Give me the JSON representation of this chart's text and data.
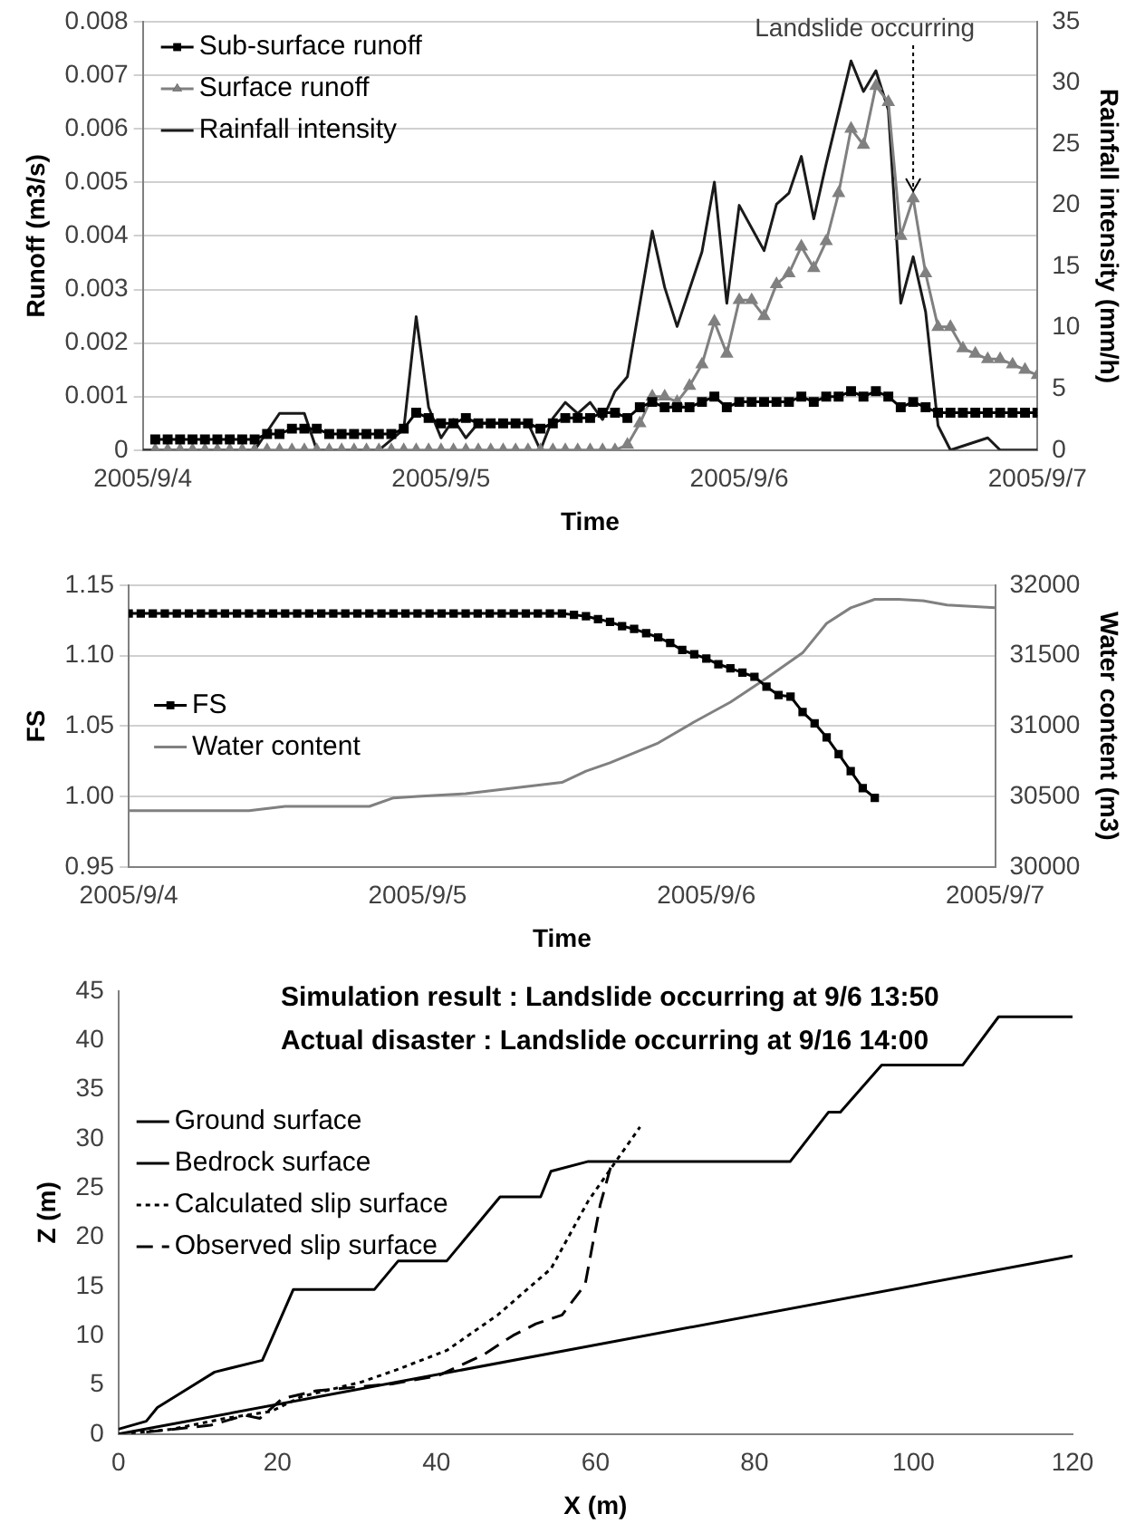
{
  "chart_data": [
    {
      "type": "line",
      "xlabel": "Time",
      "ylabel": "Runoff (m3/s)",
      "y2label": "Rainfall intensity (mm/h)",
      "grid": "y",
      "legend": "top left",
      "xlim": [
        "2005-09-04T00:00",
        "2005-09-07T00:00"
      ],
      "xticks": [
        {
          "value": "2005-09-04T00:00",
          "label": "2005/9/4"
        },
        {
          "value": "2005-09-05T00:00",
          "label": "2005/9/5"
        },
        {
          "value": "2005-09-06T00:00",
          "label": "2005/9/6"
        },
        {
          "value": "2005-09-07T00:00",
          "label": "2005/9/7"
        }
      ],
      "ylim": [
        0,
        0.008
      ],
      "yticks": [
        0,
        0.001,
        0.002,
        0.003,
        0.004,
        0.005,
        0.006,
        0.007,
        0.008
      ],
      "y2lim": [
        0,
        35
      ],
      "y2ticks": [
        0,
        5,
        10,
        15,
        20,
        25,
        30,
        35
      ],
      "x": [
        "2005-09-04T01:00",
        "2005-09-04T02:00",
        "2005-09-04T03:00",
        "2005-09-04T04:00",
        "2005-09-04T05:00",
        "2005-09-04T06:00",
        "2005-09-04T07:00",
        "2005-09-04T08:00",
        "2005-09-04T09:00",
        "2005-09-04T10:00",
        "2005-09-04T11:00",
        "2005-09-04T12:00",
        "2005-09-04T13:00",
        "2005-09-04T14:00",
        "2005-09-04T15:00",
        "2005-09-04T16:00",
        "2005-09-04T17:00",
        "2005-09-04T18:00",
        "2005-09-04T19:00",
        "2005-09-04T20:00",
        "2005-09-04T21:00",
        "2005-09-04T22:00",
        "2005-09-04T23:00",
        "2005-09-05T00:00",
        "2005-09-05T01:00",
        "2005-09-05T02:00",
        "2005-09-05T03:00",
        "2005-09-05T04:00",
        "2005-09-05T05:00",
        "2005-09-05T06:00",
        "2005-09-05T07:00",
        "2005-09-05T08:00",
        "2005-09-05T09:00",
        "2005-09-05T10:00",
        "2005-09-05T11:00",
        "2005-09-05T12:00",
        "2005-09-05T13:00",
        "2005-09-05T14:00",
        "2005-09-05T15:00",
        "2005-09-05T16:00",
        "2005-09-05T17:00",
        "2005-09-05T18:00",
        "2005-09-05T19:00",
        "2005-09-05T20:00",
        "2005-09-05T21:00",
        "2005-09-05T22:00",
        "2005-09-05T23:00",
        "2005-09-06T00:00",
        "2005-09-06T01:00",
        "2005-09-06T02:00",
        "2005-09-06T03:00",
        "2005-09-06T04:00",
        "2005-09-06T05:00",
        "2005-09-06T06:00",
        "2005-09-06T07:00",
        "2005-09-06T08:00",
        "2005-09-06T09:00",
        "2005-09-06T10:00",
        "2005-09-06T11:00",
        "2005-09-06T12:00",
        "2005-09-06T13:00",
        "2005-09-06T14:00",
        "2005-09-06T15:00",
        "2005-09-06T16:00",
        "2005-09-06T17:00",
        "2005-09-06T18:00",
        "2005-09-06T19:00",
        "2005-09-06T20:00",
        "2005-09-06T21:00",
        "2005-09-06T22:00",
        "2005-09-06T23:00",
        "2005-09-07T00:00"
      ],
      "series": [
        {
          "name": "Sub-surface runoff",
          "color": "#000000",
          "marker": "square",
          "values": [
            0.0002,
            0.0002,
            0.0002,
            0.0002,
            0.0002,
            0.0002,
            0.0002,
            0.0002,
            0.0002,
            0.0003,
            0.0003,
            0.0004,
            0.0004,
            0.0004,
            0.0003,
            0.0003,
            0.0003,
            0.0003,
            0.0003,
            0.0003,
            0.0004,
            0.0007,
            0.0006,
            0.0005,
            0.0005,
            0.0006,
            0.0005,
            0.0005,
            0.0005,
            0.0005,
            0.0005,
            0.0004,
            0.0005,
            0.0006,
            0.0006,
            0.0006,
            0.0007,
            0.0007,
            0.0006,
            0.0008,
            0.0009,
            0.0008,
            0.0008,
            0.0008,
            0.0009,
            0.001,
            0.0008,
            0.0009,
            0.0009,
            0.0009,
            0.0009,
            0.0009,
            0.001,
            0.0009,
            0.001,
            0.001,
            0.0011,
            0.001,
            0.0011,
            0.001,
            0.0008,
            0.0009,
            0.0008,
            0.0007,
            0.0007,
            0.0007,
            0.0007,
            0.0007,
            0.0007,
            0.0007,
            0.0007,
            0.0007
          ]
        },
        {
          "name": "Surface runoff",
          "color": "#808080",
          "marker": "triangle",
          "values": [
            0,
            0,
            0,
            0,
            0,
            0,
            0,
            0,
            0,
            0,
            0,
            0,
            0,
            0,
            0,
            0,
            0,
            0,
            0,
            0,
            0,
            0,
            0,
            0,
            0,
            0,
            0,
            0,
            0,
            0,
            0,
            0,
            0,
            0,
            0,
            0,
            0,
            0,
            0.0001,
            0.0005,
            0.001,
            0.001,
            0.0009,
            0.0012,
            0.0016,
            0.0024,
            0.0018,
            0.0028,
            0.0028,
            0.0025,
            0.0031,
            0.0033,
            0.0038,
            0.0034,
            0.0039,
            0.0048,
            0.006,
            0.0057,
            0.0068,
            0.0065,
            0.004,
            0.0047,
            0.0033,
            0.0023,
            0.0023,
            0.0019,
            0.0018,
            0.0017,
            0.0017,
            0.0016,
            0.0015,
            0.0014
          ]
        },
        {
          "name": "Rainfall intensity",
          "color": "#1a1a1a",
          "axis": "y2",
          "x": [
            "2005-09-04T00:00",
            "2005-09-04T09:00",
            "2005-09-04T11:00",
            "2005-09-04T13:00",
            "2005-09-04T14:00",
            "2005-09-04T19:00",
            "2005-09-04T21:00",
            "2005-09-04T22:00",
            "2005-09-04T23:00",
            "2005-09-05T00:00",
            "2005-09-05T01:00",
            "2005-09-05T02:00",
            "2005-09-05T03:00",
            "2005-09-05T07:00",
            "2005-09-05T08:00",
            "2005-09-05T09:00",
            "2005-09-05T10:00",
            "2005-09-05T11:00",
            "2005-09-05T12:00",
            "2005-09-05T13:00",
            "2005-09-05T14:00",
            "2005-09-05T15:00",
            "2005-09-05T17:00",
            "2005-09-05T18:00",
            "2005-09-05T19:00",
            "2005-09-05T21:00",
            "2005-09-05T22:00",
            "2005-09-05T23:00",
            "2005-09-06T00:00",
            "2005-09-06T02:00",
            "2005-09-06T03:00",
            "2005-09-06T04:00",
            "2005-09-06T05:00",
            "2005-09-06T06:00",
            "2005-09-06T07:00",
            "2005-09-06T09:00",
            "2005-09-06T10:00",
            "2005-09-06T11:00",
            "2005-09-06T12:00",
            "2005-09-06T13:00",
            "2005-09-06T14:00",
            "2005-09-06T15:00",
            "2005-09-06T16:00",
            "2005-09-06T17:00",
            "2005-09-06T20:00",
            "2005-09-06T21:00",
            "2005-09-07T00:00"
          ],
          "values": [
            0,
            0,
            3,
            3,
            0,
            0,
            1.7,
            10.9,
            3.5,
            1,
            2.5,
            1,
            2.2,
            2.2,
            0,
            2.6,
            3.9,
            3,
            3.9,
            2.5,
            4.8,
            6,
            17.9,
            13.3,
            10.1,
            16.2,
            21.9,
            12,
            20,
            16.3,
            20.1,
            21,
            24,
            18.9,
            23.4,
            31.8,
            29.3,
            31,
            27.8,
            12,
            15.8,
            11.3,
            2,
            0,
            1,
            0,
            0
          ]
        }
      ],
      "annotations": [
        {
          "text": "Landslide occurring",
          "x": "2005-09-06T14:00",
          "y": 0.0047
        }
      ]
    },
    {
      "type": "line",
      "xlabel": "Time",
      "ylabel": "FS",
      "y2label": "Water content (m3)",
      "grid": "y",
      "legend": "left",
      "xlim": [
        "2005-09-04T00:00",
        "2005-09-07T00:00"
      ],
      "xticks": [
        {
          "value": "2005-09-04T00:00",
          "label": "2005/9/4"
        },
        {
          "value": "2005-09-05T00:00",
          "label": "2005/9/5"
        },
        {
          "value": "2005-09-06T00:00",
          "label": "2005/9/6"
        },
        {
          "value": "2005-09-07T00:00",
          "label": "2005/9/7"
        }
      ],
      "ylim": [
        0.95,
        1.15
      ],
      "yticks": [
        {
          "value": 0.95,
          "label": "0.95"
        },
        {
          "value": 1,
          "label": "1.00"
        },
        {
          "value": 1.05,
          "label": "1.05"
        },
        {
          "value": 1.1,
          "label": "1.10"
        },
        {
          "value": 1.15,
          "label": "1.15"
        }
      ],
      "y2lim": [
        30000,
        32000
      ],
      "y2ticks": [
        30000,
        30500,
        31000,
        31500,
        32000
      ],
      "series": [
        {
          "name": "FS",
          "color": "#000000",
          "marker": "square",
          "x": [
            "2005-09-04T00:00",
            "2005-09-04T01:00",
            "2005-09-04T02:00",
            "2005-09-04T03:00",
            "2005-09-04T04:00",
            "2005-09-04T05:00",
            "2005-09-04T06:00",
            "2005-09-04T07:00",
            "2005-09-04T08:00",
            "2005-09-04T09:00",
            "2005-09-04T10:00",
            "2005-09-04T11:00",
            "2005-09-04T12:00",
            "2005-09-04T13:00",
            "2005-09-04T14:00",
            "2005-09-04T15:00",
            "2005-09-04T16:00",
            "2005-09-04T17:00",
            "2005-09-04T18:00",
            "2005-09-04T19:00",
            "2005-09-04T20:00",
            "2005-09-04T21:00",
            "2005-09-04T22:00",
            "2005-09-04T23:00",
            "2005-09-05T00:00",
            "2005-09-05T01:00",
            "2005-09-05T02:00",
            "2005-09-05T03:00",
            "2005-09-05T04:00",
            "2005-09-05T05:00",
            "2005-09-05T06:00",
            "2005-09-05T07:00",
            "2005-09-05T08:00",
            "2005-09-05T09:00",
            "2005-09-05T10:00",
            "2005-09-05T11:00",
            "2005-09-05T12:00",
            "2005-09-05T13:00",
            "2005-09-05T14:00",
            "2005-09-05T15:00",
            "2005-09-05T16:00",
            "2005-09-05T17:00",
            "2005-09-05T18:00",
            "2005-09-05T19:00",
            "2005-09-05T20:00",
            "2005-09-05T21:00",
            "2005-09-05T22:00",
            "2005-09-05T23:00",
            "2005-09-06T00:00",
            "2005-09-06T01:00",
            "2005-09-06T02:00",
            "2005-09-06T03:00",
            "2005-09-06T04:00",
            "2005-09-06T05:00",
            "2005-09-06T06:00",
            "2005-09-06T07:00",
            "2005-09-06T08:00",
            "2005-09-06T09:00",
            "2005-09-06T10:00",
            "2005-09-06T11:00",
            "2005-09-06T12:00",
            "2005-09-06T13:00",
            "2005-09-06T14:00"
          ],
          "values": [
            1.13,
            1.13,
            1.13,
            1.13,
            1.13,
            1.13,
            1.13,
            1.13,
            1.13,
            1.13,
            1.13,
            1.13,
            1.13,
            1.13,
            1.13,
            1.13,
            1.13,
            1.13,
            1.13,
            1.13,
            1.13,
            1.13,
            1.13,
            1.13,
            1.13,
            1.13,
            1.13,
            1.13,
            1.13,
            1.13,
            1.13,
            1.13,
            1.13,
            1.13,
            1.13,
            1.13,
            1.13,
            1.129,
            1.128,
            1.126,
            1.124,
            1.121,
            1.119,
            1.116,
            1.113,
            1.109,
            1.104,
            1.101,
            1.098,
            1.094,
            1.091,
            1.088,
            1.085,
            1.078,
            1.072,
            1.071,
            1.06,
            1.052,
            1.042,
            1.03,
            1.018,
            1.006,
            0.999
          ]
        },
        {
          "name": "Water content",
          "color": "#808080",
          "axis": "y2",
          "x": [
            "2005-09-04T00:00",
            "2005-09-04T10:00",
            "2005-09-04T13:00",
            "2005-09-04T20:00",
            "2005-09-04T22:00",
            "2005-09-05T00:00",
            "2005-09-05T04:00",
            "2005-09-05T08:00",
            "2005-09-05T12:00",
            "2005-09-05T14:00",
            "2005-09-05T16:00",
            "2005-09-05T20:00",
            "2005-09-05T23:00",
            "2005-09-06T02:00",
            "2005-09-06T05:00",
            "2005-09-06T08:00",
            "2005-09-06T10:00",
            "2005-09-06T12:00",
            "2005-09-06T14:00",
            "2005-09-06T16:00",
            "2005-09-06T18:00",
            "2005-09-06T20:00",
            "2005-09-07T00:00"
          ],
          "values": [
            30400,
            30400,
            30430,
            30430,
            30490,
            30500,
            30520,
            30560,
            30600,
            30680,
            30740,
            30880,
            31030,
            31170,
            31340,
            31520,
            31730,
            31840,
            31900,
            31900,
            31890,
            31860,
            31840
          ]
        }
      ]
    },
    {
      "type": "line",
      "title": "Simulation result : Landslide occurring at 9/6 13:50",
      "subtitle": "Actual disaster : Landslide occurring at 9/16 14:00",
      "xlabel": "X (m)",
      "ylabel": "Z (m)",
      "legend": "top left",
      "xlim": [
        0,
        120
      ],
      "xticks": [
        0,
        20,
        40,
        60,
        80,
        100,
        120
      ],
      "ylim": [
        0,
        45
      ],
      "yticks": [
        0,
        5,
        10,
        15,
        20,
        25,
        30,
        35,
        40,
        45
      ],
      "series": [
        {
          "name": "Ground surface",
          "color": "#000000",
          "line_style": "solid",
          "x": [
            0,
            3.5,
            4.9,
            12.1,
            18.1,
            22,
            32.2,
            35.2,
            41.3,
            48,
            53.1,
            54.4,
            59.1,
            84.5,
            89.3,
            90.8,
            96,
            106.2,
            110.7,
            120
          ],
          "values": [
            0.5,
            1.3,
            2.7,
            6.3,
            7.5,
            14.7,
            14.7,
            17.6,
            17.6,
            24.1,
            24.1,
            26.7,
            27.7,
            27.7,
            32.7,
            32.7,
            37.5,
            37.5,
            42.4,
            42.4
          ]
        },
        {
          "name": "Bedrock surface",
          "color": "#000000",
          "line_style": "solid",
          "x": [
            0,
            120
          ],
          "values": [
            0,
            18.1
          ]
        },
        {
          "name": "Calculated slip surface",
          "color": "#000000",
          "line_style": "dotted",
          "x": [
            1.6,
            6.8,
            13.5,
            19.2,
            23,
            30.6,
            34.9,
            41.3,
            47.7,
            54.4,
            59.1,
            62.3,
            65.6
          ],
          "values": [
            0.1,
            0.5,
            1.6,
            2.3,
            3.8,
            5.3,
            6.5,
            8.5,
            12.1,
            16.8,
            23.7,
            27.4,
            31.2
          ]
        },
        {
          "name": "Observed slip surface",
          "color": "#000000",
          "line_style": "dashed",
          "x": [
            3.5,
            11.6,
            15.9,
            17.8,
            20.6,
            24.9,
            34.4,
            40.1,
            45.8,
            49.6,
            52.5,
            55.8,
            58.7,
            59.6,
            60.6,
            62
          ],
          "values": [
            0.2,
            0.9,
            1.9,
            1.6,
            3.6,
            4.4,
            5.1,
            5.9,
            8,
            10,
            11.2,
            12.1,
            15.2,
            19.1,
            23.3,
            27.4
          ]
        }
      ]
    }
  ]
}
